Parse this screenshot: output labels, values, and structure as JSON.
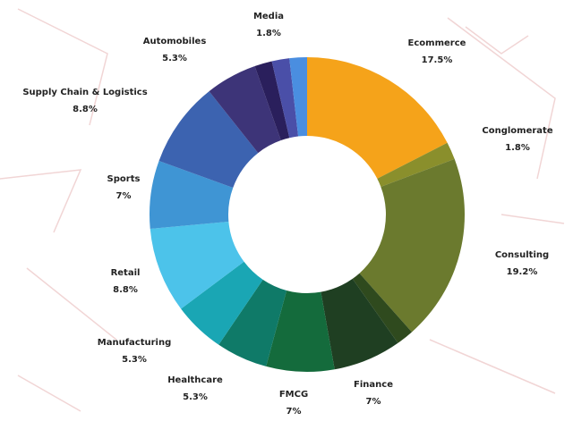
{
  "chart_data": {
    "type": "donut",
    "categories": [
      "Ecommerce",
      "Conglomerate",
      "Consulting",
      null,
      "Finance",
      "FMCG",
      "Healthcare",
      "Manufacturing",
      "Retail",
      "Sports",
      "Supply Chain & Logistics",
      "Automobiles",
      null,
      null,
      "Media"
    ],
    "values": [
      17.5,
      1.8,
      19.2,
      1.8,
      7,
      7,
      5.3,
      5.3,
      8.8,
      7,
      8.8,
      5.3,
      1.8,
      1.8,
      1.8
    ],
    "value_labels": [
      "17.5%",
      "1.8%",
      "19.2%",
      null,
      "7%",
      "7%",
      "5.3%",
      "5.3%",
      "8.8%",
      "7%",
      "8.8%",
      "5.3%",
      null,
      null,
      "1.8%"
    ],
    "colors": [
      "#f5a31a",
      "#8a8f2c",
      "#6b7a2e",
      "#2f4a1e",
      "#1f3f22",
      "#146b3c",
      "#0f7a68",
      "#1aa6b4",
      "#4cc3ea",
      "#3f95d4",
      "#3c63b0",
      "#3d3478",
      "#2a1f5c",
      "#4a4fa8",
      "#4a8ee0"
    ]
  }
}
